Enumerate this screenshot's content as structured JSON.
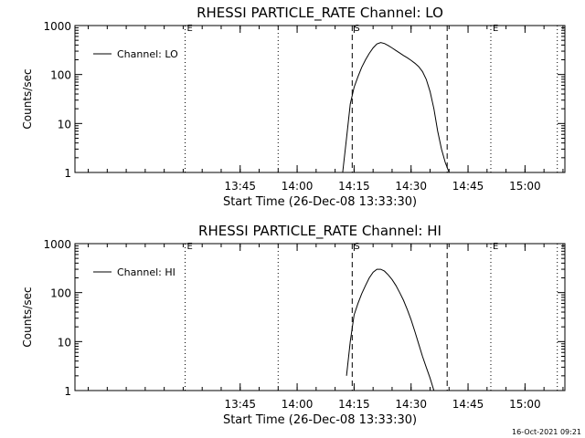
{
  "footer": {
    "timestamp": "16-Oct-2021 09:21"
  },
  "chart_data": [
    {
      "type": "line",
      "title": "RHESSI PARTICLE_RATE Channel: LO",
      "xlabel": "Start Time (26-Dec-08 13:33:30)",
      "ylabel": "Counts/sec",
      "y_scale": "log",
      "ylim": [
        1,
        1000
      ],
      "xlim_minutes": [
        -32,
        97
      ],
      "x_tick_labels": [
        "13:45",
        "14:00",
        "14:15",
        "14:30",
        "14:45",
        "15:00"
      ],
      "y_tick_labels": [
        "1",
        "10",
        "100",
        "1000"
      ],
      "legend": {
        "label": "Channel: LO",
        "position": "top-left"
      },
      "markers": [
        {
          "label": "E",
          "time": "13:30:30",
          "style": "dotted"
        },
        {
          "label": "",
          "time": "13:55:00",
          "style": "dotted"
        },
        {
          "label": "S",
          "time": "14:14:30",
          "style": "dashed"
        },
        {
          "label": "",
          "time": "14:39:30",
          "style": "dashed"
        },
        {
          "label": "E",
          "time": "14:51:00",
          "style": "dotted"
        },
        {
          "label": "",
          "time": "15:08:30",
          "style": "dotted"
        }
      ],
      "series": [
        {
          "name": "Channel: LO",
          "x_time": [
            "14:12:00",
            "14:13:00",
            "14:14:00",
            "14:15:00",
            "14:16:00",
            "14:17:00",
            "14:18:00",
            "14:19:00",
            "14:20:00",
            "14:21:00",
            "14:22:00",
            "14:23:00",
            "14:24:00",
            "14:25:00",
            "14:26:00",
            "14:27:00",
            "14:28:00",
            "14:29:00",
            "14:30:00",
            "14:31:00",
            "14:32:00",
            "14:33:00",
            "14:34:00",
            "14:35:00",
            "14:36:00",
            "14:37:00",
            "14:38:00",
            "14:39:00",
            "14:40:00"
          ],
          "y": [
            1,
            5,
            25,
            55,
            90,
            140,
            200,
            270,
            350,
            420,
            450,
            430,
            390,
            350,
            310,
            275,
            245,
            220,
            195,
            170,
            145,
            115,
            80,
            45,
            20,
            7,
            3,
            1.6,
            1
          ]
        }
      ]
    },
    {
      "type": "line",
      "title": "RHESSI PARTICLE_RATE Channel: HI",
      "xlabel": "Start Time (26-Dec-08 13:33:30)",
      "ylabel": "Counts/sec",
      "y_scale": "log",
      "ylim": [
        1,
        1000
      ],
      "xlim_minutes": [
        -32,
        97
      ],
      "x_tick_labels": [
        "13:45",
        "14:00",
        "14:15",
        "14:30",
        "14:45",
        "15:00"
      ],
      "y_tick_labels": [
        "1",
        "10",
        "100",
        "1000"
      ],
      "legend": {
        "label": "Channel: HI",
        "position": "top-left"
      },
      "markers": [
        {
          "label": "E",
          "time": "13:30:30",
          "style": "dotted"
        },
        {
          "label": "",
          "time": "13:55:00",
          "style": "dotted"
        },
        {
          "label": "S",
          "time": "14:14:30",
          "style": "dashed"
        },
        {
          "label": "",
          "time": "14:39:30",
          "style": "dashed"
        },
        {
          "label": "E",
          "time": "14:51:00",
          "style": "dotted"
        },
        {
          "label": "",
          "time": "15:08:30",
          "style": "dotted"
        }
      ],
      "series": [
        {
          "name": "Channel: HI",
          "x_time": [
            "14:13:00",
            "14:14:00",
            "14:15:00",
            "14:16:00",
            "14:17:00",
            "14:18:00",
            "14:19:00",
            "14:20:00",
            "14:21:00",
            "14:22:00",
            "14:23:00",
            "14:24:00",
            "14:25:00",
            "14:26:00",
            "14:27:00",
            "14:28:00",
            "14:29:00",
            "14:30:00",
            "14:31:00",
            "14:32:00",
            "14:33:00",
            "14:34:00",
            "14:35:00",
            "14:36:00"
          ],
          "y": [
            2,
            10,
            35,
            60,
            95,
            140,
            200,
            260,
            300,
            300,
            275,
            230,
            185,
            140,
            100,
            70,
            45,
            28,
            16,
            9,
            5,
            3,
            1.8,
            1
          ]
        }
      ]
    }
  ]
}
